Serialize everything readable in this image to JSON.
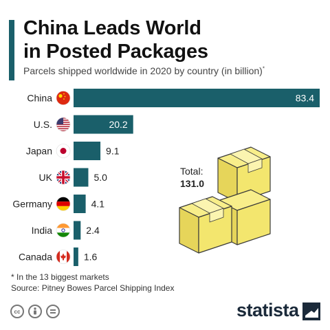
{
  "header": {
    "title_line1": "China Leads World",
    "title_line2": "in Posted Packages",
    "subtitle": "Parcels shipped worldwide in 2020 by country (in billion)",
    "subtitle_mark": "*"
  },
  "total": {
    "label": "Total:",
    "value": "131.0"
  },
  "footer": {
    "footnote": "* In the 13 biggest markets",
    "source": "Source: Pitney Bowes Parcel Shipping Index",
    "brand": "statista"
  },
  "colors": {
    "bar": "#1a5f6a",
    "box": "#f3e66e",
    "box_outline": "#3a3a3a"
  },
  "chart_data": {
    "type": "bar",
    "orientation": "horizontal",
    "categories": [
      "China",
      "U.S.",
      "Japan",
      "UK",
      "Germany",
      "India",
      "Canada"
    ],
    "values": [
      83.4,
      20.2,
      9.1,
      5.0,
      4.1,
      2.4,
      1.6
    ],
    "value_labels": [
      "83.4",
      "20.2",
      "9.1",
      "5.0",
      "4.1",
      "2.4",
      "1.6"
    ],
    "flags": [
      "china-flag",
      "us-flag",
      "japan-flag",
      "uk-flag",
      "germany-flag",
      "india-flag",
      "canada-flag"
    ],
    "xlim": [
      0,
      83.4
    ],
    "grid": false,
    "legend": "none"
  }
}
